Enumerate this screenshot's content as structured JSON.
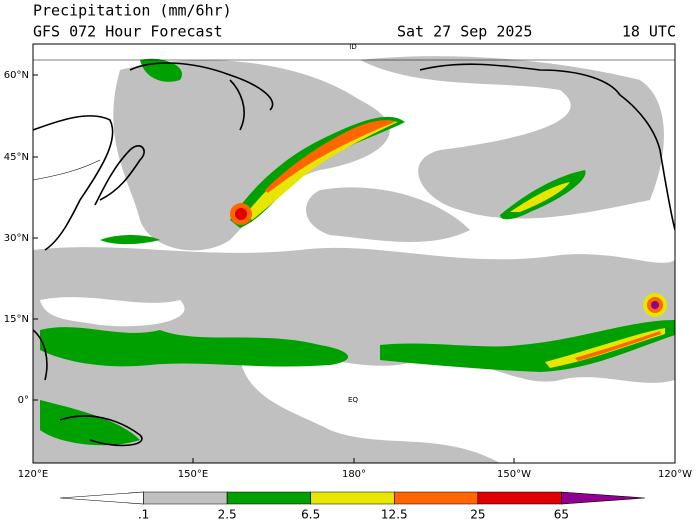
{
  "header": {
    "title": "Precipitation (mm/6hr)",
    "subtitle": "GFS 072 Hour Forecast",
    "date": "Sat 27 Sep 2025",
    "time": "18 UTC"
  },
  "map": {
    "lon_labels": [
      "120°E",
      "150°E",
      "180°",
      "150°W",
      "120°W"
    ],
    "lat_labels": [
      "60°N",
      "45°N",
      "30°N",
      "15°N",
      "0°"
    ],
    "annotations": [
      "EQ",
      "ID"
    ]
  },
  "colorbar": {
    "labels": [
      ".1",
      "2.5",
      "6.5",
      "12.5",
      "25",
      "65"
    ],
    "colors": [
      "#ffffff",
      "#c0c0c0",
      "#00a000",
      "#e6e600",
      "#ff6600",
      "#e00000",
      "#900090"
    ]
  }
}
